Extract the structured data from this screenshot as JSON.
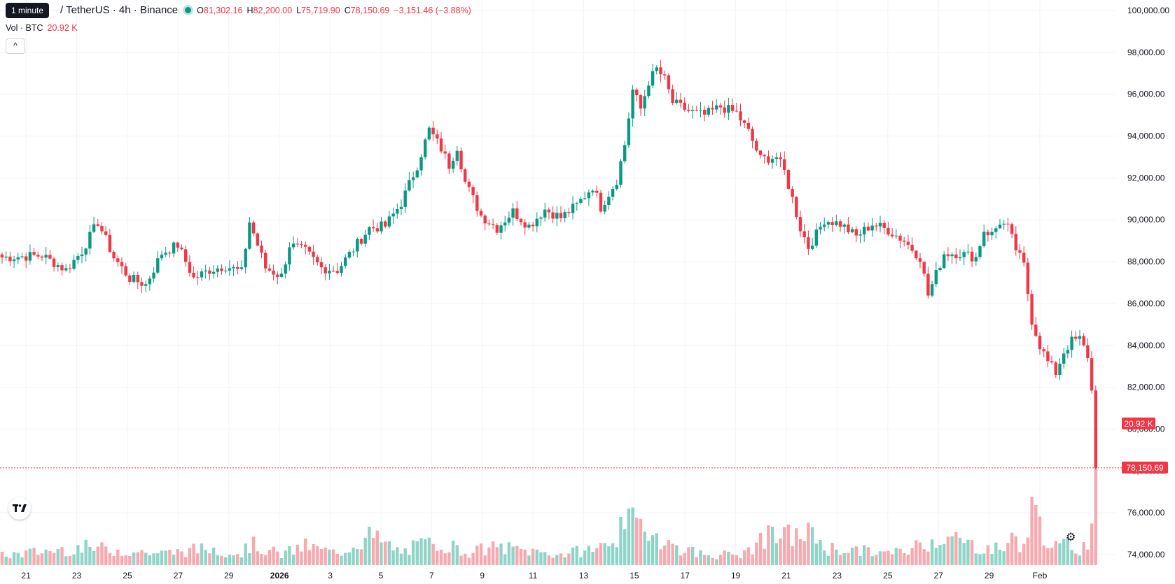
{
  "tooltip": "1 minute",
  "header": {
    "symbol": "/ TetherUS · 4h · Binance",
    "o_label": "O",
    "o_value": "81,302.16",
    "h_label": "H",
    "h_value": "82,200.00",
    "l_label": "L",
    "l_value": "75,719.90",
    "c_label": "C",
    "c_value": "78,150.69",
    "change": "−3,151.46 (−3.88%)"
  },
  "volume": {
    "label": "Vol · BTC",
    "value": "20.92 K"
  },
  "collapse_label": "^",
  "badges": {
    "volume": "20.92 K",
    "price": "78,150.69"
  },
  "colors": {
    "up": "#089981",
    "down": "#F23645",
    "up_vol": "#8FD4C7",
    "down_vol": "#F7A9AF",
    "grid": "#F0F3FA"
  },
  "icons": {
    "logo": "tradingview-logo-icon",
    "settings": "gear-icon"
  },
  "chart_data": {
    "type": "candlestick",
    "ylim": [
      73500,
      100500
    ],
    "y_ticks": [
      "100,000.00",
      "98,000.00",
      "96,000.00",
      "94,000.00",
      "92,000.00",
      "90,000.00",
      "88,000.00",
      "86,000.00",
      "84,000.00",
      "82,000.00",
      "80,000.00",
      "78,000.00",
      "76,000.00",
      "74,000.00"
    ],
    "y_tick_values": [
      100000,
      98000,
      96000,
      94000,
      92000,
      90000,
      88000,
      86000,
      84000,
      82000,
      80000,
      78000,
      76000,
      74000
    ],
    "x_ticks": [
      "21",
      "23",
      "25",
      "27",
      "29",
      "2026",
      "3",
      "5",
      "7",
      "9",
      "11",
      "13",
      "15",
      "17",
      "19",
      "21",
      "23",
      "25",
      "27",
      "29",
      "Feb"
    ],
    "last_price": 78150.69,
    "anchors": [
      [
        0,
        88200
      ],
      [
        10,
        88300
      ],
      [
        16,
        87600
      ],
      [
        20,
        88500
      ],
      [
        24,
        89900
      ],
      [
        28,
        88200
      ],
      [
        32,
        87200
      ],
      [
        36,
        86900
      ],
      [
        40,
        88400
      ],
      [
        44,
        88800
      ],
      [
        48,
        87200
      ],
      [
        52,
        87600
      ],
      [
        56,
        87800
      ],
      [
        60,
        87500
      ],
      [
        62,
        89900
      ],
      [
        64,
        88800
      ],
      [
        66,
        87700
      ],
      [
        70,
        87300
      ],
      [
        72,
        88800
      ],
      [
        76,
        88500
      ],
      [
        80,
        87700
      ],
      [
        84,
        87600
      ],
      [
        88,
        88600
      ],
      [
        92,
        89600
      ],
      [
        96,
        89700
      ],
      [
        100,
        90800
      ],
      [
        104,
        92600
      ],
      [
        107,
        94300
      ],
      [
        110,
        93400
      ],
      [
        112,
        92600
      ],
      [
        114,
        93500
      ],
      [
        116,
        91800
      ],
      [
        120,
        90200
      ],
      [
        124,
        89600
      ],
      [
        128,
        90400
      ],
      [
        132,
        89700
      ],
      [
        136,
        90500
      ],
      [
        140,
        90100
      ],
      [
        144,
        90700
      ],
      [
        148,
        91600
      ],
      [
        150,
        90600
      ],
      [
        154,
        91900
      ],
      [
        156,
        93600
      ],
      [
        158,
        96200
      ],
      [
        160,
        95300
      ],
      [
        162,
        96600
      ],
      [
        164,
        97200
      ],
      [
        166,
        96700
      ],
      [
        168,
        95600
      ],
      [
        172,
        95200
      ],
      [
        176,
        95000
      ],
      [
        180,
        95400
      ],
      [
        184,
        95100
      ],
      [
        187,
        94200
      ],
      [
        190,
        92900
      ],
      [
        194,
        93000
      ],
      [
        196,
        92300
      ],
      [
        198,
        91000
      ],
      [
        200,
        89600
      ],
      [
        202,
        88700
      ],
      [
        204,
        89300
      ],
      [
        206,
        90000
      ],
      [
        210,
        89800
      ],
      [
        214,
        89200
      ],
      [
        218,
        89800
      ],
      [
        222,
        89500
      ],
      [
        226,
        89000
      ],
      [
        230,
        88200
      ],
      [
        232,
        86400
      ],
      [
        234,
        87400
      ],
      [
        236,
        88400
      ],
      [
        240,
        88400
      ],
      [
        244,
        88200
      ],
      [
        246,
        89500
      ],
      [
        248,
        89300
      ],
      [
        250,
        89900
      ],
      [
        252,
        89600
      ],
      [
        254,
        88600
      ],
      [
        256,
        87800
      ],
      [
        258,
        85200
      ],
      [
        260,
        84000
      ],
      [
        262,
        83200
      ],
      [
        264,
        82700
      ],
      [
        266,
        83700
      ],
      [
        268,
        84200
      ],
      [
        270,
        84300
      ],
      [
        272,
        83500
      ],
      [
        273,
        81800
      ],
      [
        274,
        78150.69
      ]
    ],
    "volume_anchors": [
      [
        0,
        0.09
      ],
      [
        20,
        0.17
      ],
      [
        40,
        0.11
      ],
      [
        52,
        0.16
      ],
      [
        60,
        0.11
      ],
      [
        62,
        0.2
      ],
      [
        70,
        0.1
      ],
      [
        76,
        0.18
      ],
      [
        84,
        0.11
      ],
      [
        92,
        0.28
      ],
      [
        100,
        0.12
      ],
      [
        104,
        0.18
      ],
      [
        107,
        0.2
      ],
      [
        110,
        0.22
      ],
      [
        116,
        0.12
      ],
      [
        124,
        0.17
      ],
      [
        140,
        0.1
      ],
      [
        150,
        0.17
      ],
      [
        154,
        0.3
      ],
      [
        158,
        0.4
      ],
      [
        162,
        0.36
      ],
      [
        168,
        0.18
      ],
      [
        176,
        0.1
      ],
      [
        184,
        0.1
      ],
      [
        187,
        0.12
      ],
      [
        190,
        0.26
      ],
      [
        198,
        0.28
      ],
      [
        204,
        0.3
      ],
      [
        206,
        0.16
      ],
      [
        214,
        0.14
      ],
      [
        222,
        0.11
      ],
      [
        226,
        0.13
      ],
      [
        230,
        0.2
      ],
      [
        236,
        0.28
      ],
      [
        244,
        0.18
      ],
      [
        250,
        0.15
      ],
      [
        254,
        0.28
      ],
      [
        256,
        0.16
      ],
      [
        258,
        0.52
      ],
      [
        260,
        0.38
      ],
      [
        262,
        0.28
      ],
      [
        264,
        0.16
      ],
      [
        268,
        0.2
      ],
      [
        270,
        0.14
      ],
      [
        273,
        0.32
      ],
      [
        274,
        1.0
      ]
    ]
  }
}
